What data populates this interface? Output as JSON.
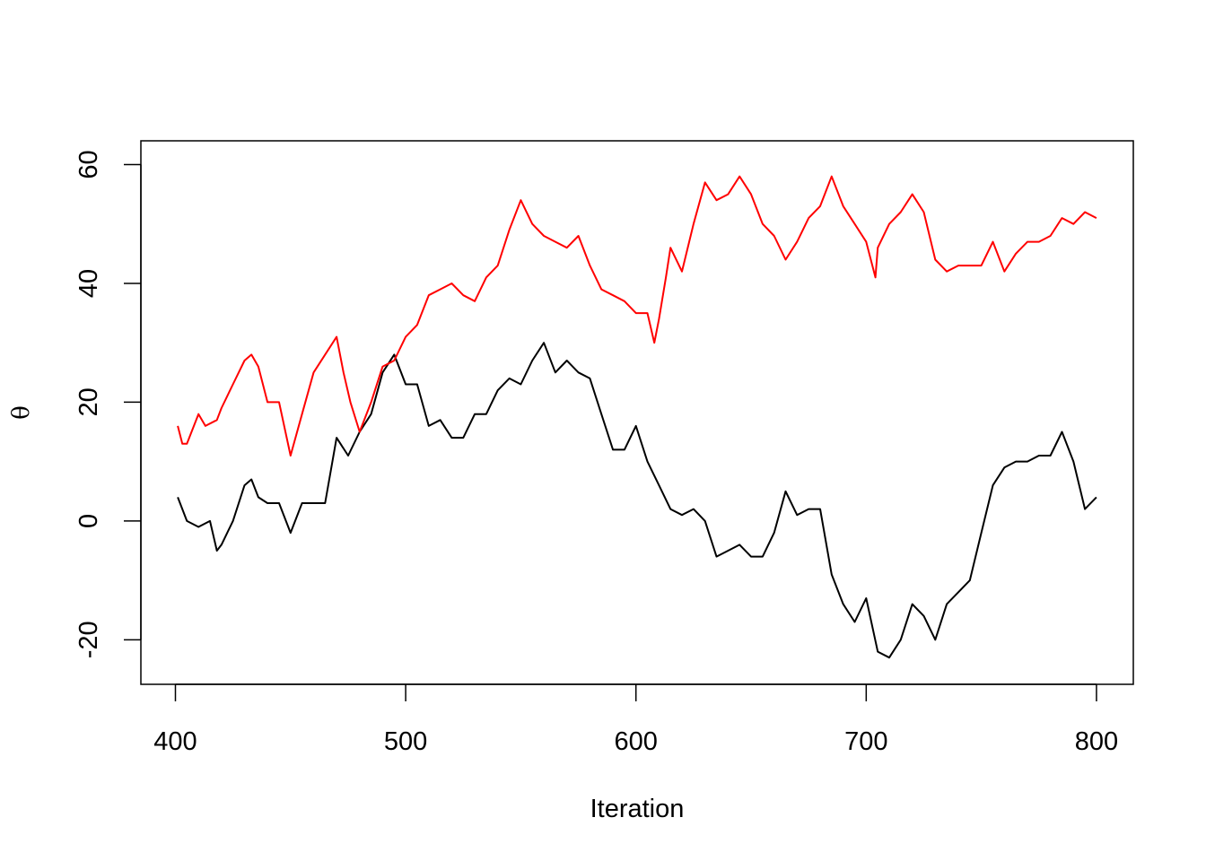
{
  "chart_data": {
    "type": "line",
    "title": "",
    "xlabel": "Iteration",
    "ylabel": "θ",
    "xlim": [
      385,
      816
    ],
    "ylim": [
      -27.5,
      64
    ],
    "xticks": [
      400,
      500,
      600,
      700,
      800
    ],
    "xtick_labels": [
      "400",
      "500",
      "600",
      "700",
      "800"
    ],
    "yticks": [
      -20,
      0,
      20,
      40,
      60
    ],
    "ytick_labels": [
      "-20",
      "0",
      "20",
      "40",
      "60"
    ],
    "grid": false,
    "legend": "none",
    "series": [
      {
        "color": "#000000",
        "x": [
          401,
          405,
          410,
          415,
          418,
          420,
          425,
          430,
          433,
          436,
          440,
          445,
          450,
          455,
          460,
          465,
          470,
          475,
          480,
          485,
          490,
          495,
          500,
          505,
          510,
          515,
          520,
          525,
          530,
          535,
          540,
          545,
          550,
          555,
          560,
          565,
          570,
          575,
          580,
          585,
          590,
          595,
          600,
          605,
          610,
          615,
          620,
          625,
          630,
          635,
          640,
          645,
          650,
          655,
          660,
          665,
          670,
          675,
          680,
          685,
          690,
          695,
          700,
          705,
          710,
          715,
          720,
          725,
          730,
          735,
          740,
          745,
          750,
          755,
          760,
          765,
          770,
          775,
          780,
          785,
          790,
          795,
          800
        ],
        "y": [
          4,
          0,
          -1,
          0,
          -5,
          -4,
          0,
          6,
          7,
          4,
          3,
          3,
          -2,
          3,
          3,
          3,
          14,
          11,
          15,
          18,
          25,
          28,
          23,
          23,
          16,
          17,
          14,
          14,
          18,
          18,
          22,
          24,
          23,
          27,
          30,
          25,
          27,
          25,
          24,
          18,
          12,
          12,
          16,
          10,
          6,
          2,
          1,
          2,
          0,
          -6,
          -5,
          -4,
          -6,
          -6,
          -2,
          5,
          1,
          2,
          2,
          -9,
          -14,
          -17,
          -13,
          -22,
          -23,
          -20,
          -14,
          -16,
          -20,
          -14,
          -12,
          -10,
          -2,
          6,
          9,
          10,
          10,
          11,
          11,
          15,
          10,
          2,
          4
        ]
      },
      {
        "color": "#ff0000",
        "x": [
          401,
          403,
          405,
          410,
          413,
          418,
          420,
          425,
          430,
          433,
          436,
          440,
          445,
          450,
          455,
          460,
          465,
          470,
          473,
          476,
          480,
          485,
          490,
          495,
          500,
          505,
          510,
          515,
          520,
          525,
          530,
          535,
          540,
          545,
          550,
          555,
          560,
          565,
          570,
          575,
          580,
          585,
          590,
          595,
          600,
          605,
          608,
          610,
          613,
          615,
          620,
          625,
          630,
          635,
          640,
          645,
          650,
          655,
          660,
          665,
          670,
          675,
          680,
          685,
          690,
          695,
          700,
          704,
          705,
          710,
          715,
          720,
          725,
          730,
          735,
          740,
          745,
          750,
          755,
          760,
          765,
          770,
          775,
          780,
          785,
          790,
          795,
          800
        ],
        "y": [
          16,
          13,
          13,
          18,
          16,
          17,
          19,
          23,
          27,
          28,
          26,
          20,
          20,
          11,
          18,
          25,
          28,
          31,
          25,
          20,
          15,
          20,
          26,
          27,
          31,
          33,
          38,
          39,
          40,
          38,
          37,
          41,
          43,
          49,
          54,
          50,
          48,
          47,
          46,
          48,
          43,
          39,
          38,
          37,
          35,
          35,
          30,
          34,
          41,
          46,
          42,
          50,
          57,
          54,
          55,
          58,
          55,
          50,
          48,
          44,
          47,
          51,
          53,
          58,
          53,
          50,
          47,
          41,
          46,
          50,
          52,
          55,
          52,
          44,
          42,
          43,
          43,
          43,
          47,
          42,
          45,
          47,
          47,
          48,
          51,
          50,
          52,
          51
        ]
      }
    ]
  }
}
